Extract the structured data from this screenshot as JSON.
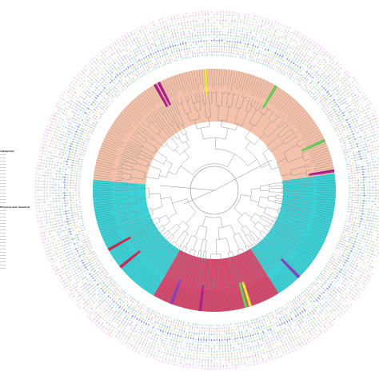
{
  "figure": {
    "type": "circular-phylogenetic-tree",
    "background": "#ffffff",
    "branch_color": "#8a8a8a",
    "clade_colors": {
      "salmon": "#f2b79c",
      "cyan": "#19c9cf",
      "crimson": "#cc2a55",
      "magenta": "#b21f8f",
      "green": "#6ccf5a",
      "yellow": "#f2ee36",
      "purple": "#8a3fbf"
    },
    "ring_colors": [
      "#9fd4b1",
      "#c6b0e3",
      "#e6c995",
      "#7fb6e8",
      "#b4d98a",
      "#6b6bd6",
      "#a7d8e8",
      "#93c99a",
      "#cfa8d8",
      "#9bc4ea",
      "#d8cca0",
      "#a9dfb9",
      "#e0a8d8",
      "#c5e3b0",
      "#d8b4e2",
      "#f2c2e6"
    ]
  },
  "legend": {
    "heading_1": "categories",
    "items_1": [
      "",
      "",
      "",
      "",
      "",
      "",
      "",
      "",
      "",
      "",
      "",
      "",
      "",
      "",
      "",
      ""
    ],
    "heading_2": "Physical and chemical categories",
    "items_2": [
      "",
      "",
      "",
      "",
      "",
      "",
      "",
      "",
      "",
      "",
      "",
      "",
      "",
      "",
      "",
      "",
      "",
      "",
      ""
    ]
  }
}
